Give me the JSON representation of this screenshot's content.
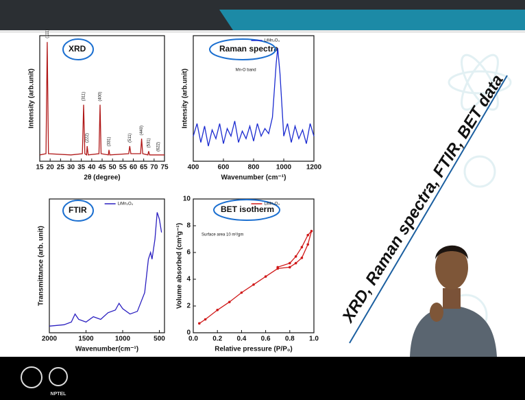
{
  "slide": {
    "title": "XRD, Raman spectra, FTIR, BET data",
    "logo_text": "NPTEL"
  },
  "chart_data": [
    {
      "type": "line",
      "title": "XRD",
      "xlabel": "2θ (degree)",
      "ylabel": "Intensity (arb.unit)",
      "xlim": [
        15,
        75
      ],
      "ylim": [
        0,
        100
      ],
      "xticks": [
        15,
        20,
        25,
        30,
        35,
        40,
        45,
        50,
        55,
        60,
        65,
        70,
        75
      ],
      "x": [
        15,
        18,
        18.6,
        19.2,
        30,
        35.5,
        36.1,
        36.7,
        37.5,
        37.8,
        38.3,
        43.5,
        44,
        44.5,
        48,
        48.3,
        48.7,
        57.8,
        58.3,
        58.8,
        63.5,
        64,
        64.5,
        67,
        67.4,
        67.8,
        75
      ],
      "series": [
        {
          "color": "#b01818",
          "values": [
            5,
            6,
            95,
            6,
            5,
            6,
            45,
            6,
            5,
            12,
            5,
            6,
            45,
            6,
            5,
            9,
            5,
            6,
            12,
            6,
            6,
            18,
            6,
            5,
            8,
            5,
            5
          ]
        }
      ],
      "annotations": [
        {
          "text": "(111)",
          "x": 18.6
        },
        {
          "text": "(311)",
          "x": 36.1
        },
        {
          "text": "(222)",
          "x": 37.8
        },
        {
          "text": "(400)",
          "x": 44
        },
        {
          "text": "(331)",
          "x": 48.3
        },
        {
          "text": "(511)",
          "x": 58.3
        },
        {
          "text": "(440)",
          "x": 64
        },
        {
          "text": "(531)",
          "x": 67.4
        },
        {
          "text": "(622)",
          "x": 72
        }
      ]
    },
    {
      "type": "line",
      "title": "Raman spectra",
      "xlabel": "Wavenumber (cm⁻¹)",
      "ylabel": "Intensity (arb.unit)",
      "xlim": [
        400,
        1200
      ],
      "ylim": [
        0,
        100
      ],
      "xticks": [
        400,
        600,
        800,
        1000,
        1200
      ],
      "x": [
        400,
        425,
        450,
        475,
        500,
        525,
        550,
        575,
        600,
        625,
        650,
        675,
        700,
        725,
        750,
        775,
        800,
        825,
        850,
        875,
        900,
        925,
        950,
        960,
        975,
        1000,
        1025,
        1050,
        1075,
        1100,
        1125,
        1150,
        1175,
        1200
      ],
      "series": [
        {
          "name": "LiMn₂O₄",
          "color": "#1a2ad0",
          "values": [
            20,
            30,
            15,
            28,
            12,
            25,
            18,
            30,
            14,
            26,
            20,
            32,
            15,
            24,
            18,
            28,
            16,
            30,
            20,
            26,
            22,
            35,
            78,
            90,
            70,
            20,
            30,
            15,
            28,
            18,
            25,
            14,
            30,
            20
          ]
        }
      ],
      "annotations": [
        {
          "text": "Mn-O band"
        }
      ]
    },
    {
      "type": "line",
      "title": "FTIR",
      "xlabel": "Wavenumber(cm⁻¹)",
      "ylabel": "Transmittance (arb. unit)",
      "xlim": [
        2000,
        430
      ],
      "ylim": [
        0,
        100
      ],
      "xticks": [
        2000,
        1500,
        1000,
        500
      ],
      "x": [
        2000,
        1800,
        1700,
        1650,
        1600,
        1500,
        1400,
        1300,
        1200,
        1100,
        1050,
        1000,
        900,
        800,
        700,
        650,
        620,
        600,
        560,
        530,
        500,
        470
      ],
      "series": [
        {
          "name": "LiMn₂O₄",
          "color": "#2a1fc0",
          "values": [
            5,
            6,
            8,
            14,
            10,
            8,
            12,
            10,
            15,
            17,
            22,
            18,
            14,
            16,
            30,
            55,
            60,
            55,
            70,
            90,
            85,
            75
          ]
        }
      ]
    },
    {
      "type": "line",
      "title": "BET isotherm",
      "subtitle": "Surface area 10 m²/gm",
      "markers": true,
      "xlabel": "Relative pressure (P/P₀)",
      "ylabel": "Volume absorbed (cm³g⁻¹)",
      "xlim": [
        0,
        1
      ],
      "ylim": [
        0,
        10
      ],
      "xticks": [
        {
          "value": 0,
          "label": "0.0"
        },
        0.2,
        0.4,
        0.6,
        0.8,
        {
          "value": 1,
          "label": "1.0"
        }
      ],
      "yticks": [
        0,
        2,
        4,
        6,
        8,
        10
      ],
      "x": [
        0.05,
        0.1,
        0.2,
        0.3,
        0.4,
        0.5,
        0.6,
        0.7,
        0.8,
        0.85,
        0.9,
        0.95,
        0.98,
        0.95,
        0.9,
        0.85,
        0.8,
        0.7
      ],
      "series": [
        {
          "name": "LiMn₂O₄",
          "color": "#d01818",
          "values": [
            0.7,
            1.0,
            1.7,
            2.3,
            3.0,
            3.6,
            4.2,
            4.8,
            4.9,
            5.2,
            5.6,
            6.6,
            7.6,
            7.3,
            6.4,
            5.7,
            5.2,
            4.9
          ]
        }
      ]
    }
  ]
}
